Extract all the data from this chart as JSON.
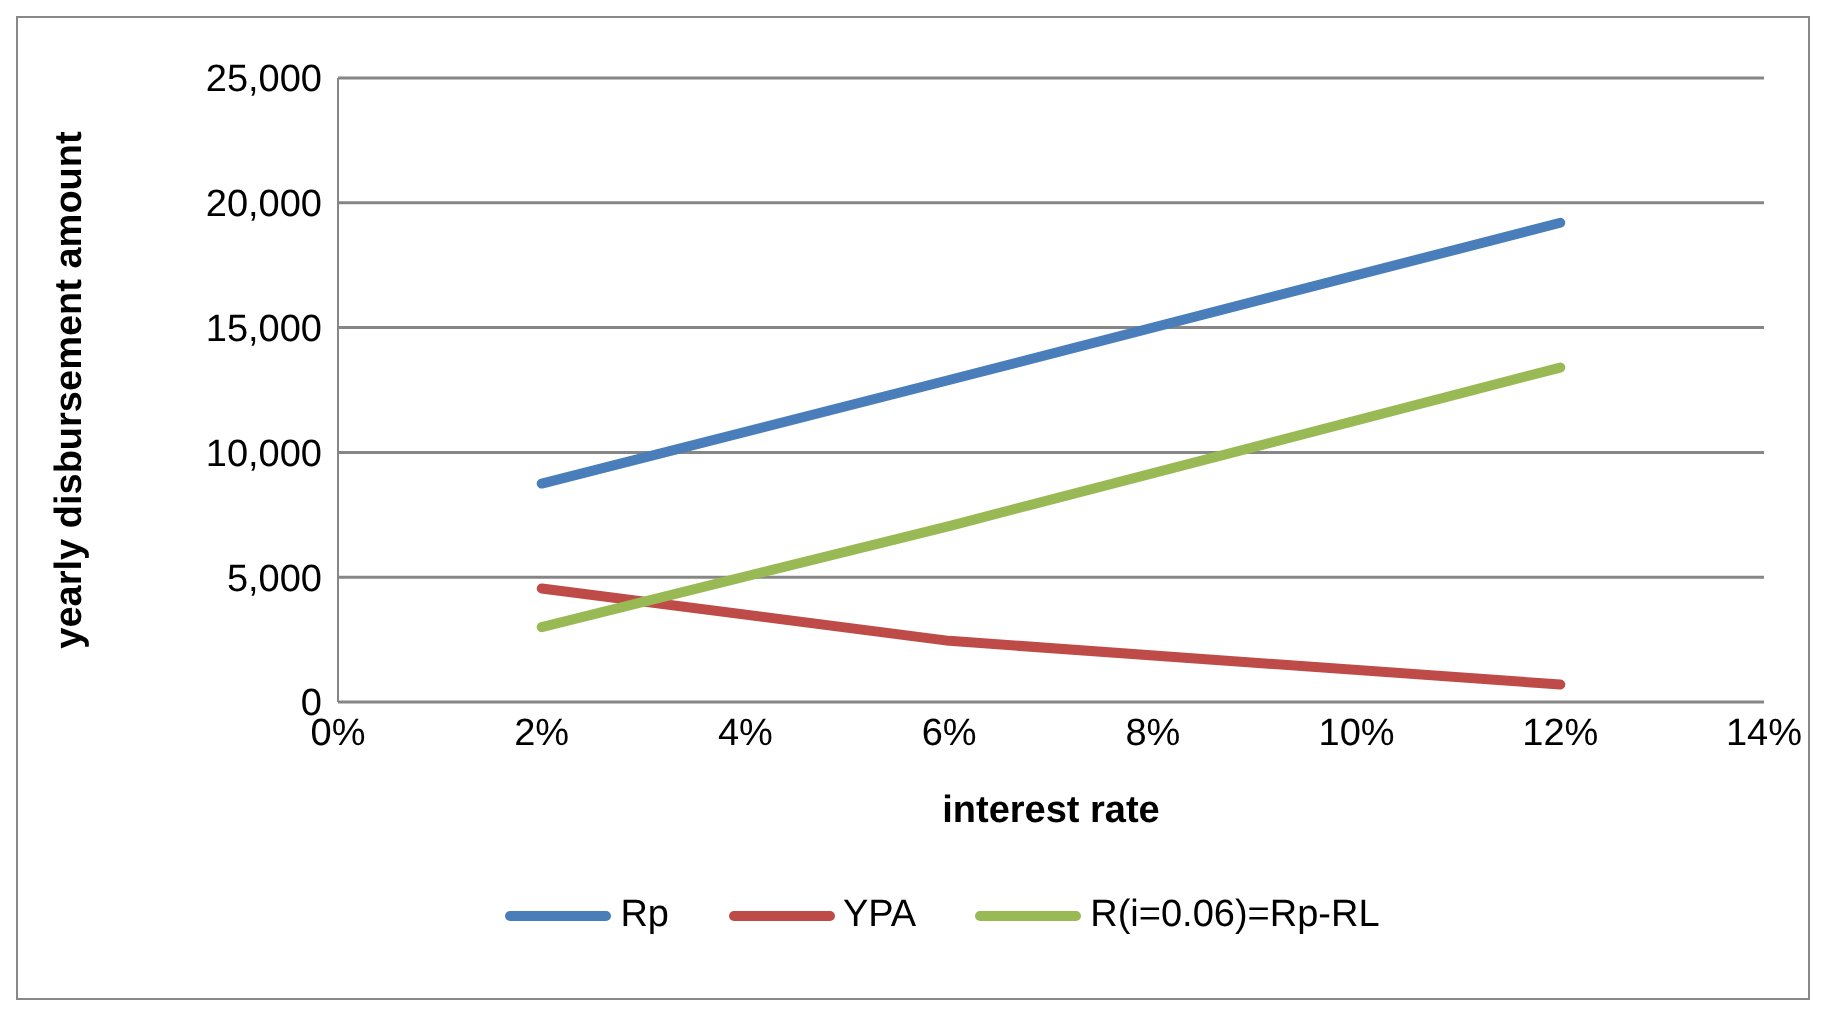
{
  "chart_data": {
    "type": "line",
    "xlabel": "interest rate",
    "ylabel": "yearly disbursement amount",
    "x": [
      0.02,
      0.06,
      0.12
    ],
    "series": [
      {
        "name": "Rp",
        "color": "#4a7ebb",
        "values": [
          8750,
          12900,
          19200
        ]
      },
      {
        "name": "YPA",
        "color": "#be4b48",
        "values": [
          4550,
          2450,
          700
        ]
      },
      {
        "name": "R(i=0.06)=Rp-RL",
        "color": "#98b954",
        "values": [
          3000,
          7050,
          13400
        ]
      }
    ],
    "xlim": [
      0,
      0.14
    ],
    "xticks": [
      {
        "value": 0,
        "label": "0%"
      },
      {
        "value": 0.02,
        "label": "2%"
      },
      {
        "value": 0.04,
        "label": "4%"
      },
      {
        "value": 0.06,
        "label": "6%"
      },
      {
        "value": 0.08,
        "label": "8%"
      },
      {
        "value": 0.1,
        "label": "10%"
      },
      {
        "value": 0.12,
        "label": "12%"
      },
      {
        "value": 0.14,
        "label": "14%"
      }
    ],
    "ylim": [
      0,
      25000
    ],
    "yticks": [
      {
        "value": 0,
        "label": "0"
      },
      {
        "value": 5000,
        "label": "5,000"
      },
      {
        "value": 10000,
        "label": "10,000"
      },
      {
        "value": 15000,
        "label": "15,000"
      },
      {
        "value": 20000,
        "label": "20,000"
      },
      {
        "value": 25000,
        "label": "25,000"
      }
    ],
    "grid": "y",
    "legend": "bottom",
    "marker": "none",
    "line_style": "solid"
  }
}
